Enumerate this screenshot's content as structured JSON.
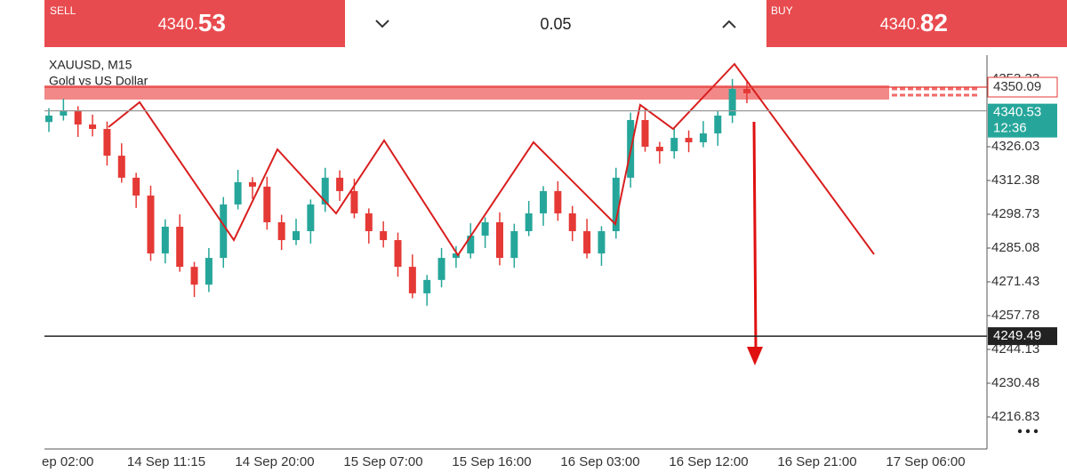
{
  "header": {
    "sell_label": "SELL",
    "sell_price": "4340.",
    "sell_pips": "53",
    "lot": "0.05",
    "buy_label": "BUY",
    "buy_price": "4340.",
    "buy_pips": "82"
  },
  "chart_data": {
    "type": "candlestick",
    "symbol": "XAUUSD, M15",
    "description": "Gold vs US Dollar",
    "open": [
      4336.0,
      4338.6,
      4340.4,
      4335.0,
      4333.2,
      4322.4,
      4313.5,
      4306.3,
      4282.9,
      4293.7,
      4277.5,
      4270.3,
      4281.1,
      4302.7,
      4311.7,
      4309.9,
      4295.5,
      4288.3,
      4291.9,
      4302.7,
      4313.5,
      4308.1,
      4299.1,
      4291.9,
      4288.3,
      4277.5,
      4266.8,
      4272.2,
      4281.1,
      4282.9,
      4290.1,
      4295.5,
      4281.1,
      4291.9,
      4299.1,
      4308.1,
      4299.1,
      4291.9,
      4282.9,
      4291.9,
      4313.5,
      4336.8,
      4326.0,
      4324.2,
      4329.6,
      4327.8,
      4331.4,
      4338.6,
      4349.4
    ],
    "high": [
      4341.6,
      4345.4,
      4342.4,
      4339.0,
      4336.2,
      4327.4,
      4315.5,
      4310.3,
      4296.7,
      4298.7,
      4279.5,
      4285.1,
      4305.7,
      4316.7,
      4313.7,
      4313.9,
      4298.5,
      4296.9,
      4304.7,
      4317.5,
      4316.5,
      4313.1,
      4301.1,
      4295.9,
      4291.3,
      4282.5,
      4274.2,
      4285.1,
      4285.9,
      4295.1,
      4297.5,
      4299.5,
      4294.9,
      4304.1,
      4310.1,
      4312.1,
      4302.1,
      4296.9,
      4293.9,
      4317.5,
      4339.8,
      4341.8,
      4328.0,
      4333.6,
      4332.6,
      4336.4,
      4340.6,
      4353.4,
      4352.4
    ],
    "low": [
      4332.0,
      4336.6,
      4330.0,
      4330.2,
      4318.4,
      4311.5,
      4301.3,
      4279.9,
      4278.9,
      4275.5,
      4265.3,
      4267.3,
      4277.1,
      4300.7,
      4304.9,
      4292.5,
      4284.3,
      4286.3,
      4286.9,
      4299.7,
      4304.1,
      4297.1,
      4286.9,
      4285.3,
      4273.5,
      4264.8,
      4261.8,
      4269.2,
      4277.1,
      4280.9,
      4285.1,
      4278.1,
      4277.1,
      4289.9,
      4294.1,
      4296.1,
      4287.9,
      4280.9,
      4277.9,
      4288.9,
      4309.5,
      4324.0,
      4319.2,
      4321.2,
      4323.8,
      4325.8,
      4326.4,
      4335.6,
      4343.6
    ],
    "close": [
      4338.6,
      4340.4,
      4335.0,
      4333.2,
      4322.4,
      4313.5,
      4306.3,
      4282.9,
      4293.7,
      4277.5,
      4270.3,
      4281.1,
      4302.7,
      4311.7,
      4309.9,
      4295.5,
      4288.3,
      4291.9,
      4302.7,
      4313.5,
      4308.1,
      4299.1,
      4291.9,
      4288.3,
      4277.5,
      4266.8,
      4272.2,
      4281.1,
      4282.9,
      4290.1,
      4295.5,
      4281.1,
      4291.9,
      4299.1,
      4308.1,
      4299.1,
      4291.9,
      4282.9,
      4291.9,
      4313.5,
      4336.8,
      4326.0,
      4324.2,
      4329.6,
      4327.8,
      4331.4,
      4338.6,
      4349.4,
      4347.6
    ],
    "up_color": "#26a69a",
    "down_color": "#e53935",
    "ylim": [
      4203.9,
      4363.03
    ],
    "yticks": [
      4353.33,
      4326.03,
      4312.38,
      4298.73,
      4285.08,
      4271.43,
      4257.78,
      4244.13,
      4230.48,
      4216.83
    ],
    "x_labels": [
      "ep 02:00",
      "14 Sep 11:15",
      "14 Sep 20:00",
      "15 Sep 07:00",
      "15 Sep 16:00",
      "16 Sep 03:00",
      "16 Sep 12:00",
      "16 Sep 21:00",
      "17 Sep 06:00"
    ],
    "price_lines": [
      {
        "value": 4350.09,
        "color": "#e53935"
      },
      {
        "value": 4340.53,
        "color": "#26a69a"
      },
      {
        "value": 4249.49,
        "color": "#222222"
      }
    ],
    "countdown": "12:36"
  }
}
